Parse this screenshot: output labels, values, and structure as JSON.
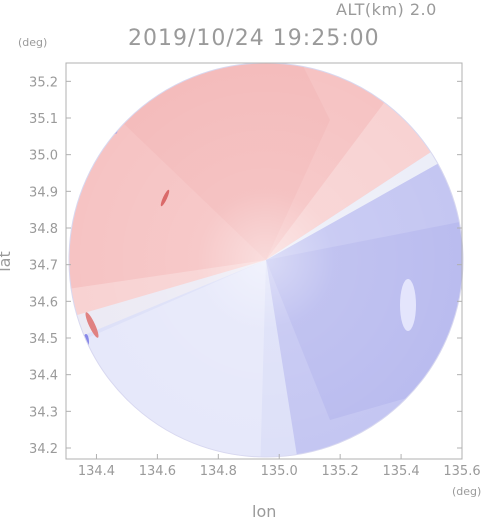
{
  "header": {
    "altitude": "ALT(km) 2.0",
    "timestamp": "2019/10/24 19:25:00"
  },
  "axes": {
    "y_unit": "(deg)",
    "x_unit": "(deg)",
    "xlabel": "lon",
    "ylabel": "lat",
    "x_ticks": [
      "134.4",
      "134.6",
      "134.8",
      "135.0",
      "135.2",
      "135.4",
      "135.6"
    ],
    "y_ticks": [
      "35.2",
      "35.1",
      "35.0",
      "34.9",
      "34.8",
      "34.7",
      "34.6",
      "34.5",
      "34.4",
      "34.3",
      "34.2"
    ],
    "x_range": [
      134.3,
      135.6
    ],
    "y_range": [
      34.17,
      35.25
    ]
  },
  "radar": {
    "center_lon": 134.93,
    "center_lat": 34.71,
    "approaching_color": "#b8b8f0",
    "receding_color": "#f6c6c6"
  }
}
